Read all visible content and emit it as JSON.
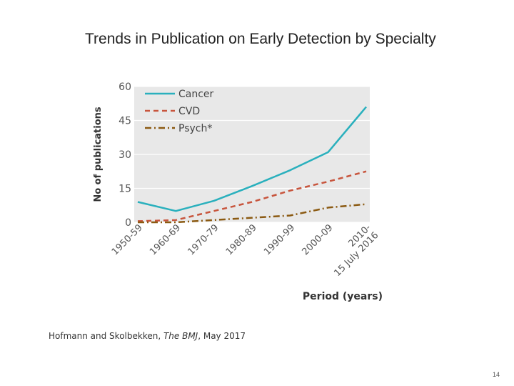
{
  "slide": {
    "title": "Trends in Publication on Early Detection by Specialty",
    "citation_authors": "Hofmann and Skolbekken, ",
    "citation_journal": "The BMJ",
    "citation_date": ", May 2017",
    "page_number": "14"
  },
  "chart_data": {
    "type": "line",
    "title": "",
    "xlabel": "Period (years)",
    "ylabel": "No of publications",
    "categories": [
      "1950-59",
      "1960-69",
      "1970-79",
      "1980-89",
      "1990-99",
      "2000-09",
      "2010-15 July 2016"
    ],
    "category_label_lines": [
      [
        "1950-59"
      ],
      [
        "1960-69"
      ],
      [
        "1970-79"
      ],
      [
        "1980-89"
      ],
      [
        "1990-99"
      ],
      [
        "2000-09"
      ],
      [
        "2010-",
        "15 July 2016"
      ]
    ],
    "ylim": [
      0,
      60
    ],
    "yticks": [
      0,
      15,
      30,
      45,
      60
    ],
    "grid": true,
    "legend_position": "top-left",
    "background": "#e8e8e8",
    "series": [
      {
        "name": "Cancer",
        "color": "#2ab0bd",
        "dash": "solid",
        "values": [
          9,
          5,
          9.5,
          16,
          23,
          31,
          51
        ]
      },
      {
        "name": "CVD",
        "color": "#c8553d",
        "dash": "dashed",
        "values": [
          0.5,
          1,
          5,
          9,
          14,
          18,
          22.5
        ]
      },
      {
        "name": "Psych*",
        "color": "#8b5a12",
        "dash": "dashdot",
        "values": [
          0,
          0,
          1,
          2,
          3,
          6.5,
          8
        ]
      }
    ]
  }
}
